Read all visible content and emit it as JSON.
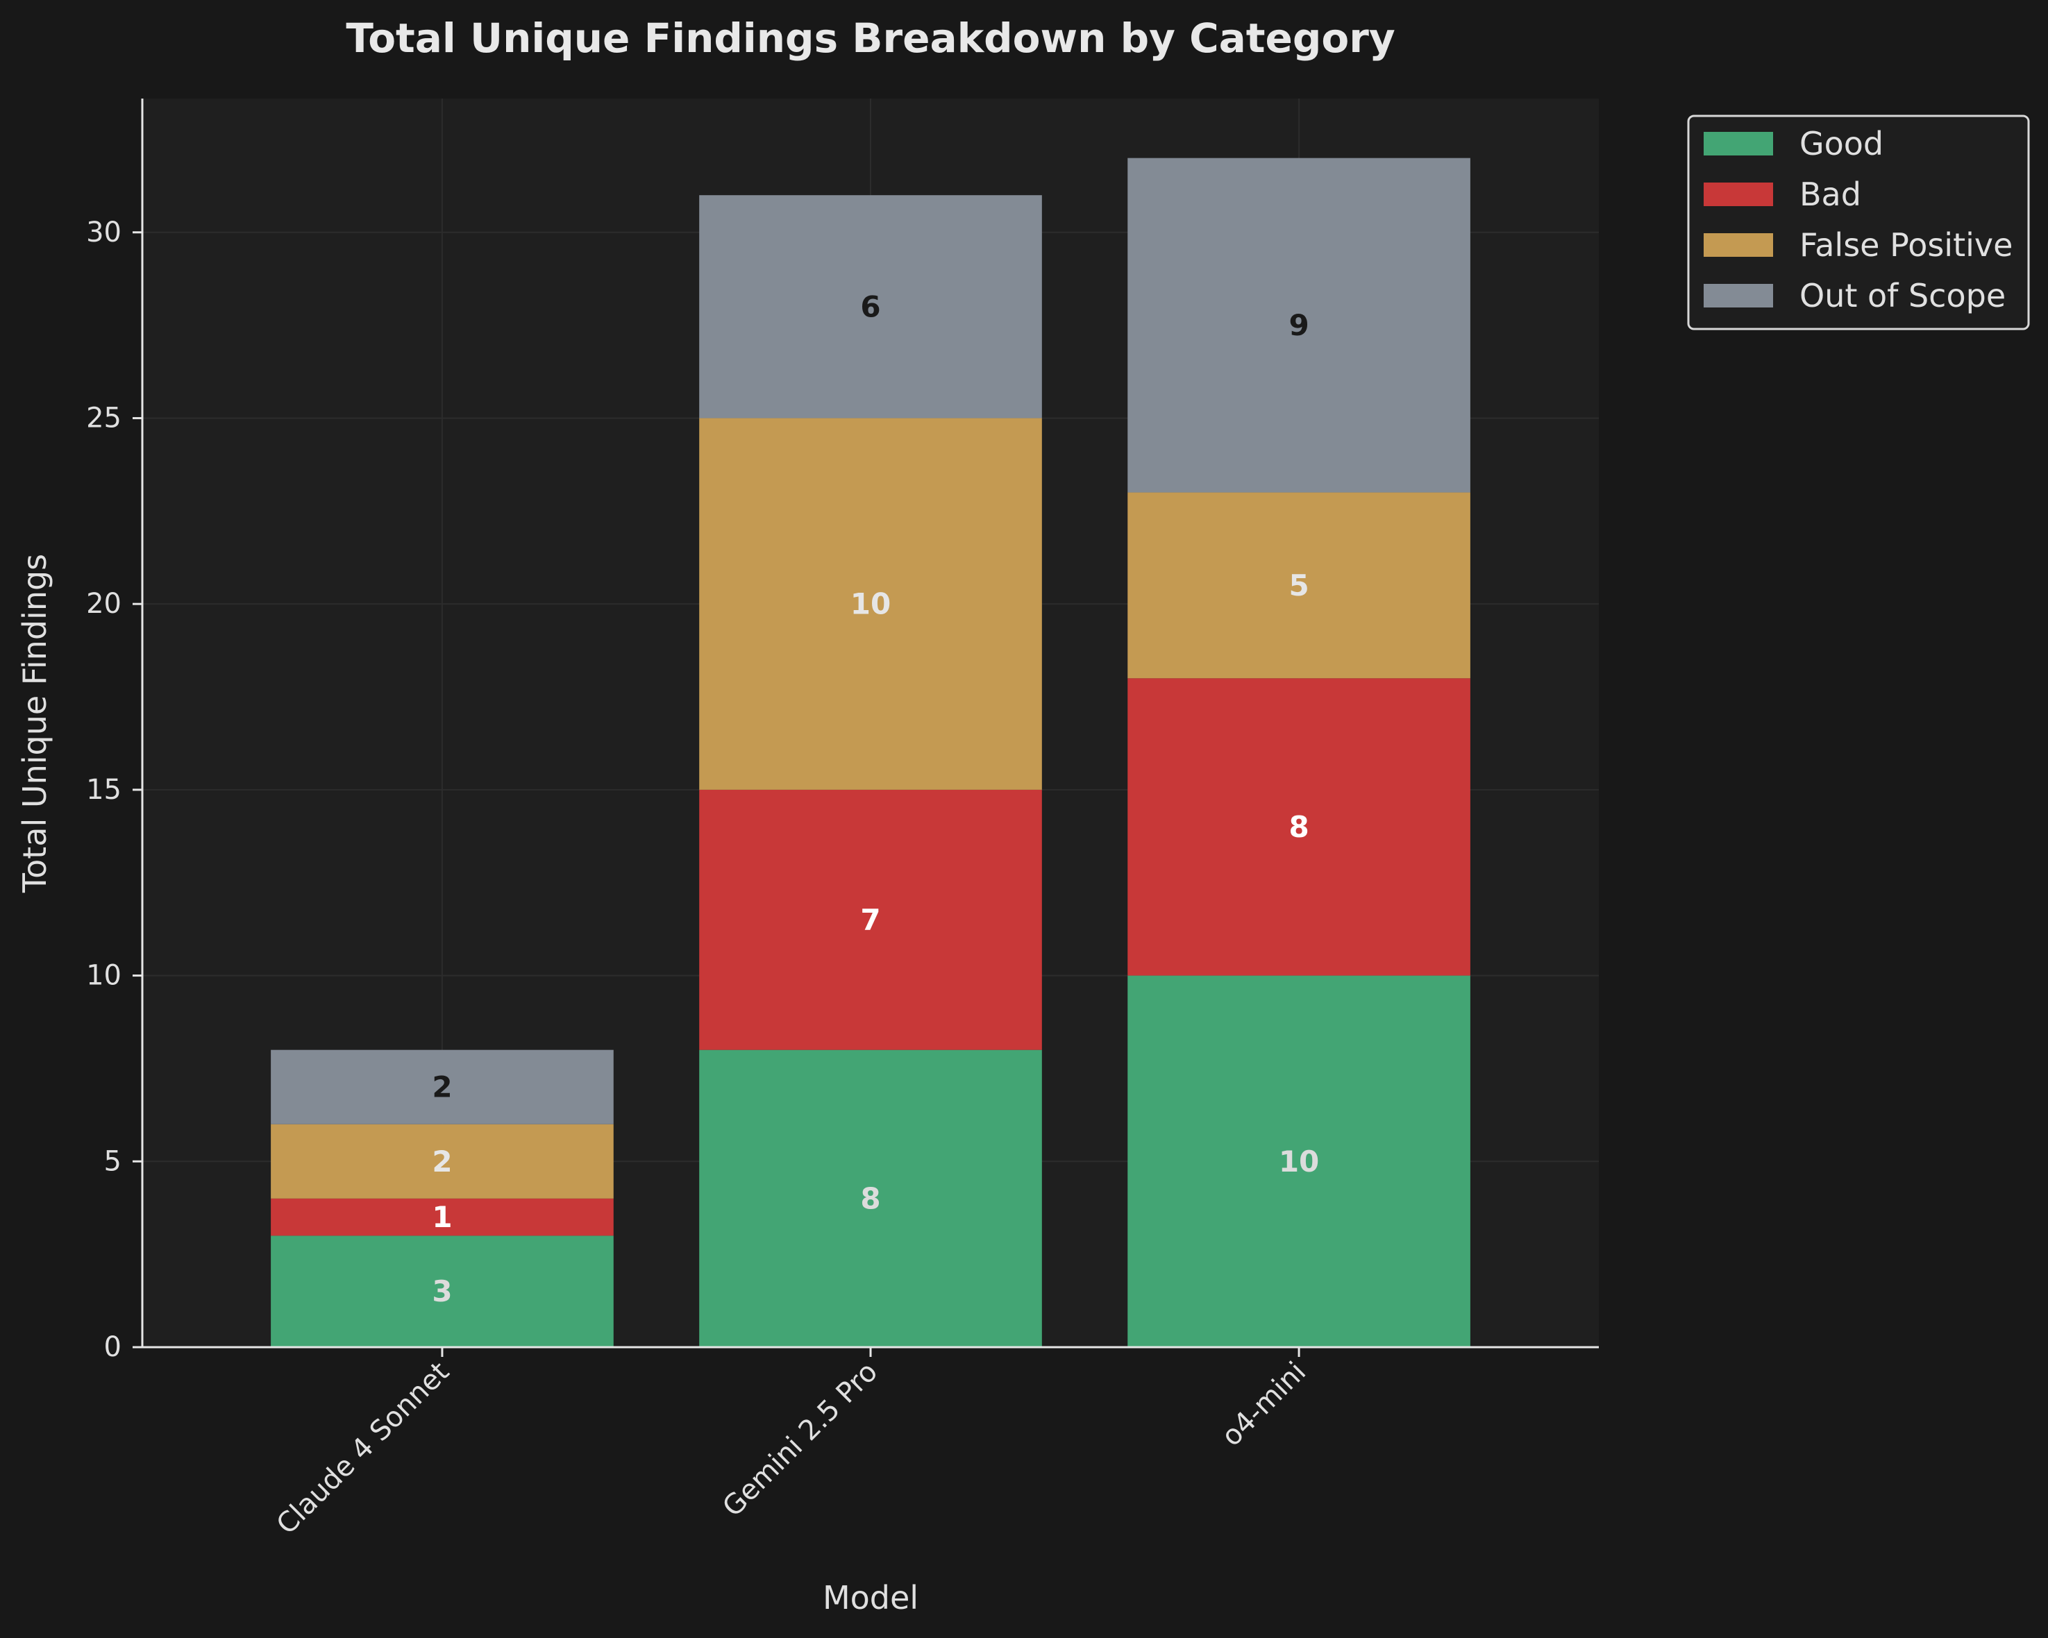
{
  "chart_data": {
    "type": "bar",
    "stacked": true,
    "title": "Total Unique Findings Breakdown by Category",
    "xlabel": "Model",
    "ylabel": "Total Unique Findings",
    "categories": [
      "Claude 4 Sonnet",
      "Gemini 2.5 Pro",
      "o4-mini"
    ],
    "series": [
      {
        "name": "Good",
        "color": "#43a574",
        "label_color": "#dcdcdc",
        "values": [
          3,
          8,
          10
        ]
      },
      {
        "name": "Bad",
        "color": "#c83838",
        "label_color": "#ffffff",
        "values": [
          1,
          7,
          8
        ]
      },
      {
        "name": "False Positive",
        "color": "#c49a52",
        "label_color": "#e6e6e6",
        "values": [
          2,
          10,
          5
        ]
      },
      {
        "name": "Out of Scope",
        "color": "#838b95",
        "label_color": "#1a1a1a",
        "values": [
          2,
          6,
          9
        ]
      }
    ],
    "ylim": [
      0,
      33.6
    ],
    "yticks": [
      0,
      5,
      10,
      15,
      20,
      25,
      30
    ],
    "grid": true,
    "legend": "outside-top-right",
    "background": "#181818",
    "plot_background": "#1f1f1f"
  }
}
